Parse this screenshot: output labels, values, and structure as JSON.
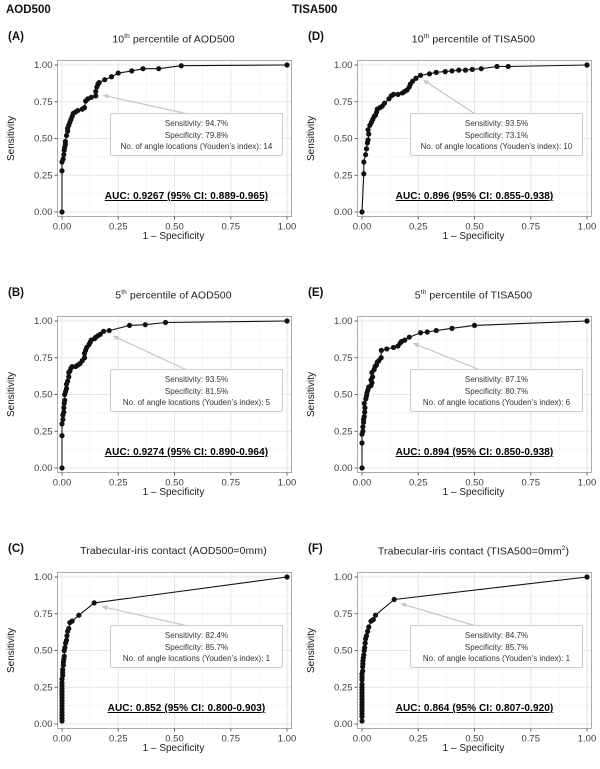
{
  "figure": {
    "column_headers": [
      "AOD500",
      "TISA500"
    ],
    "axes": {
      "x_label": "1 – Specificity",
      "y_label": "Sensitivity",
      "tick_values": [
        0,
        0.25,
        0.5,
        0.75,
        1
      ],
      "tick_labels": [
        "0.00",
        "0.25",
        "0.50",
        "0.75",
        "1.00"
      ],
      "x_range": [
        0,
        1
      ],
      "y_range": [
        0,
        1
      ],
      "grid": "on"
    },
    "colors": {
      "curve": "#111111",
      "grid_major": "#e6e6e6",
      "grid_minor": "#f4f4f4",
      "panel_border": "#ababab",
      "tick_mark": "#555555",
      "tick_text": "#3d3d3d",
      "annotation_border": "#cbcbcb",
      "arrow": "#c6c6c6",
      "background": "#ffffff"
    }
  },
  "chart_data": [
    {
      "type": "line",
      "panel": "A",
      "letter": "(A)",
      "title": "10th percentile of AOD500",
      "title_segments": [
        {
          "text": "10"
        },
        {
          "text": "th",
          "sup": true
        },
        {
          "text": " percentile of AOD500"
        }
      ],
      "xlabel": "1 – Specificity",
      "ylabel": "Sensitivity",
      "xlim": [
        0,
        1
      ],
      "ylim": [
        0,
        1
      ],
      "annotation": {
        "lines": [
          "Sensitivity: 94.7%",
          "Specificity: 79.8%",
          "No. of angle locations (Youden’s index): 14"
        ],
        "sensitivity_pct": 94.7,
        "specificity_pct": 79.8,
        "n_angle_locations_youden": 14
      },
      "auc": 0.9267,
      "ci_95": "0.889-0.965",
      "auc_label": "AUC: 0.9267 (95% CI: 0.889-0.965)",
      "arrow": {
        "from": [
          0.55,
          0.67
        ],
        "to": [
          0.18,
          0.795
        ]
      },
      "roc_points": [
        [
          0,
          0
        ],
        [
          0,
          0.28
        ],
        [
          0,
          0.34
        ],
        [
          0.005,
          0.36
        ],
        [
          0.008,
          0.39
        ],
        [
          0.01,
          0.42
        ],
        [
          0.012,
          0.44
        ],
        [
          0.015,
          0.46
        ],
        [
          0.015,
          0.48
        ],
        [
          0.02,
          0.52
        ],
        [
          0.025,
          0.55
        ],
        [
          0.025,
          0.57
        ],
        [
          0.03,
          0.59
        ],
        [
          0.035,
          0.61
        ],
        [
          0.04,
          0.63
        ],
        [
          0.045,
          0.65
        ],
        [
          0.05,
          0.67
        ],
        [
          0.06,
          0.68
        ],
        [
          0.07,
          0.69
        ],
        [
          0.09,
          0.7
        ],
        [
          0.1,
          0.71
        ],
        [
          0.105,
          0.755
        ],
        [
          0.115,
          0.77
        ],
        [
          0.13,
          0.78
        ],
        [
          0.15,
          0.79
        ],
        [
          0.15,
          0.82
        ],
        [
          0.155,
          0.85
        ],
        [
          0.16,
          0.87
        ],
        [
          0.165,
          0.88
        ],
        [
          0.19,
          0.9
        ],
        [
          0.22,
          0.92
        ],
        [
          0.25,
          0.945
        ],
        [
          0.31,
          0.96
        ],
        [
          0.36,
          0.975
        ],
        [
          0.43,
          0.975
        ],
        [
          0.53,
          0.995
        ],
        [
          1,
          1
        ]
      ]
    },
    {
      "type": "line",
      "panel": "B",
      "letter": "(B)",
      "title": "5th percentile of AOD500",
      "title_segments": [
        {
          "text": "5"
        },
        {
          "text": "th",
          "sup": true
        },
        {
          "text": " percentile of AOD500"
        }
      ],
      "xlabel": "1 – Specificity",
      "ylabel": "Sensitivity",
      "xlim": [
        0,
        1
      ],
      "ylim": [
        0,
        1
      ],
      "annotation": {
        "lines": [
          "Sensitivity: 93.5%",
          "Specificity: 81.5%",
          "No. of angle locations (Youden’s index): 5"
        ],
        "sensitivity_pct": 93.5,
        "specificity_pct": 81.5,
        "n_angle_locations_youden": 5
      },
      "auc": 0.9274,
      "ci_95": "0.890-0.964",
      "auc_label": "AUC: 0.9274 (95% CI: 0.890-0.964)",
      "arrow": {
        "from": [
          0.55,
          0.67
        ],
        "to": [
          0.225,
          0.9
        ]
      },
      "roc_points": [
        [
          0,
          0
        ],
        [
          0,
          0.22
        ],
        [
          0,
          0.3
        ],
        [
          0.004,
          0.33
        ],
        [
          0.004,
          0.36
        ],
        [
          0.008,
          0.38
        ],
        [
          0.008,
          0.41
        ],
        [
          0.01,
          0.44
        ],
        [
          0.012,
          0.46
        ],
        [
          0.012,
          0.5
        ],
        [
          0.016,
          0.52
        ],
        [
          0.02,
          0.54
        ],
        [
          0.02,
          0.57
        ],
        [
          0.025,
          0.59
        ],
        [
          0.03,
          0.62
        ],
        [
          0.03,
          0.65
        ],
        [
          0.035,
          0.66
        ],
        [
          0.04,
          0.68
        ],
        [
          0.045,
          0.69
        ],
        [
          0.06,
          0.69
        ],
        [
          0.07,
          0.7
        ],
        [
          0.08,
          0.71
        ],
        [
          0.09,
          0.73
        ],
        [
          0.1,
          0.75
        ],
        [
          0.1,
          0.78
        ],
        [
          0.105,
          0.8
        ],
        [
          0.11,
          0.82
        ],
        [
          0.12,
          0.84
        ],
        [
          0.125,
          0.855
        ],
        [
          0.13,
          0.87
        ],
        [
          0.145,
          0.88
        ],
        [
          0.15,
          0.89
        ],
        [
          0.16,
          0.9
        ],
        [
          0.17,
          0.91
        ],
        [
          0.185,
          0.93
        ],
        [
          0.21,
          0.935
        ],
        [
          0.3,
          0.97
        ],
        [
          0.37,
          0.975
        ],
        [
          0.46,
          0.99
        ],
        [
          1,
          1
        ]
      ]
    },
    {
      "type": "line",
      "panel": "C",
      "letter": "(C)",
      "title": "Trabecular-iris contact (AOD500=0mm)",
      "title_segments": [
        {
          "text": "Trabecular-iris contact (AOD500=0mm)"
        }
      ],
      "xlabel": "1 – Specificity",
      "ylabel": "Sensitivity",
      "xlim": [
        0,
        1
      ],
      "ylim": [
        0,
        1
      ],
      "annotation": {
        "lines": [
          "Sensitivity: 82.4%",
          "Specificity: 85.7%",
          "No. of angle locations (Youden’s index): 1"
        ],
        "sensitivity_pct": 82.4,
        "specificity_pct": 85.7,
        "n_angle_locations_youden": 1
      },
      "auc": 0.852,
      "ci_95": "0.800-0.903",
      "auc_label": "AUC: 0.852 (95% CI: 0.800-0.903)",
      "arrow": {
        "from": [
          0.55,
          0.67
        ],
        "to": [
          0.175,
          0.8
        ]
      },
      "roc_points": [
        [
          0,
          0.02
        ],
        [
          0,
          0.04
        ],
        [
          0,
          0.06
        ],
        [
          0,
          0.08
        ],
        [
          0,
          0.1
        ],
        [
          0,
          0.12
        ],
        [
          0,
          0.14
        ],
        [
          0,
          0.16
        ],
        [
          0,
          0.18
        ],
        [
          0,
          0.2
        ],
        [
          0,
          0.22
        ],
        [
          0,
          0.24
        ],
        [
          0,
          0.26
        ],
        [
          0,
          0.28
        ],
        [
          0,
          0.305
        ],
        [
          0.003,
          0.33
        ],
        [
          0.003,
          0.35
        ],
        [
          0.003,
          0.37
        ],
        [
          0.006,
          0.4
        ],
        [
          0.006,
          0.42
        ],
        [
          0.008,
          0.44
        ],
        [
          0.01,
          0.46
        ],
        [
          0.01,
          0.5
        ],
        [
          0.013,
          0.52
        ],
        [
          0.016,
          0.55
        ],
        [
          0.02,
          0.57
        ],
        [
          0.022,
          0.6
        ],
        [
          0.025,
          0.63
        ],
        [
          0.03,
          0.65
        ],
        [
          0.035,
          0.69
        ],
        [
          0.045,
          0.7
        ],
        [
          0.075,
          0.74
        ],
        [
          0.143,
          0.824
        ],
        [
          1,
          1
        ]
      ]
    },
    {
      "type": "line",
      "panel": "D",
      "letter": "(D)",
      "title": "10th percentile of TISA500",
      "title_segments": [
        {
          "text": "10"
        },
        {
          "text": "th",
          "sup": true
        },
        {
          "text": " percentile of TISA500"
        }
      ],
      "xlabel": "1 – Specificity",
      "ylabel": "Sensitivity",
      "xlim": [
        0,
        1
      ],
      "ylim": [
        0,
        1
      ],
      "annotation": {
        "lines": [
          "Sensitivity: 93.5%",
          "Specificity: 73.1%",
          "No. of angle locations (Youden’s index): 10"
        ],
        "sensitivity_pct": 93.5,
        "specificity_pct": 73.1,
        "n_angle_locations_youden": 10
      },
      "auc": 0.896,
      "ci_95": "0.855-0.938",
      "auc_label": "AUC: 0.896 (95% CI: 0.855-0.938)",
      "arrow": {
        "from": [
          0.5,
          0.67
        ],
        "to": [
          0.27,
          0.9
        ]
      },
      "roc_points": [
        [
          0,
          0
        ],
        [
          0.008,
          0.26
        ],
        [
          0.008,
          0.34
        ],
        [
          0.016,
          0.39
        ],
        [
          0.02,
          0.43
        ],
        [
          0.024,
          0.47
        ],
        [
          0.027,
          0.49
        ],
        [
          0.03,
          0.53
        ],
        [
          0.027,
          0.56
        ],
        [
          0.035,
          0.59
        ],
        [
          0.042,
          0.61
        ],
        [
          0.048,
          0.63
        ],
        [
          0.054,
          0.65
        ],
        [
          0.06,
          0.66
        ],
        [
          0.065,
          0.68
        ],
        [
          0.068,
          0.7
        ],
        [
          0.08,
          0.71
        ],
        [
          0.09,
          0.72
        ],
        [
          0.1,
          0.74
        ],
        [
          0.12,
          0.77
        ],
        [
          0.13,
          0.79
        ],
        [
          0.14,
          0.8
        ],
        [
          0.16,
          0.8
        ],
        [
          0.18,
          0.81
        ],
        [
          0.19,
          0.82
        ],
        [
          0.2,
          0.83
        ],
        [
          0.21,
          0.85
        ],
        [
          0.215,
          0.87
        ],
        [
          0.225,
          0.89
        ],
        [
          0.24,
          0.91
        ],
        [
          0.26,
          0.93
        ],
        [
          0.3,
          0.94
        ],
        [
          0.33,
          0.95
        ],
        [
          0.37,
          0.955
        ],
        [
          0.4,
          0.96
        ],
        [
          0.43,
          0.965
        ],
        [
          0.46,
          0.965
        ],
        [
          0.49,
          0.97
        ],
        [
          0.53,
          0.975
        ],
        [
          0.6,
          0.99
        ],
        [
          0.65,
          0.99
        ],
        [
          1,
          1
        ]
      ]
    },
    {
      "type": "line",
      "panel": "E",
      "letter": "(E)",
      "title": "5th percentile of TISA500",
      "title_segments": [
        {
          "text": "5"
        },
        {
          "text": "th",
          "sup": true
        },
        {
          "text": " percentile of TISA500"
        }
      ],
      "xlabel": "1 – Specificity",
      "ylabel": "Sensitivity",
      "xlim": [
        0,
        1
      ],
      "ylim": [
        0,
        1
      ],
      "annotation": {
        "lines": [
          "Sensitivity: 87.1%",
          "Specificity: 80.7%",
          "No. of angle locations (Youden’s index): 6"
        ],
        "sensitivity_pct": 87.1,
        "specificity_pct": 80.7,
        "n_angle_locations_youden": 6
      },
      "auc": 0.894,
      "ci_95": "0.850-0.938",
      "auc_label": "AUC: 0.894 (95% CI: 0.850-0.938)",
      "arrow": {
        "from": [
          0.52,
          0.67
        ],
        "to": [
          0.225,
          0.85
        ]
      },
      "roc_points": [
        [
          0,
          0
        ],
        [
          0,
          0.17
        ],
        [
          0,
          0.23
        ],
        [
          0.004,
          0.25
        ],
        [
          0.004,
          0.28
        ],
        [
          0.007,
          0.31
        ],
        [
          0.007,
          0.33
        ],
        [
          0.01,
          0.35
        ],
        [
          0.012,
          0.38
        ],
        [
          0.013,
          0.41
        ],
        [
          0.01,
          0.44
        ],
        [
          0.017,
          0.47
        ],
        [
          0.02,
          0.49
        ],
        [
          0.022,
          0.51
        ],
        [
          0.026,
          0.53
        ],
        [
          0.03,
          0.55
        ],
        [
          0.04,
          0.56
        ],
        [
          0.044,
          0.58
        ],
        [
          0.04,
          0.6
        ],
        [
          0.047,
          0.62
        ],
        [
          0.044,
          0.65
        ],
        [
          0.054,
          0.67
        ],
        [
          0.058,
          0.69
        ],
        [
          0.064,
          0.7
        ],
        [
          0.068,
          0.72
        ],
        [
          0.075,
          0.73
        ],
        [
          0.085,
          0.75
        ],
        [
          0.086,
          0.8
        ],
        [
          0.11,
          0.81
        ],
        [
          0.14,
          0.82
        ],
        [
          0.16,
          0.83
        ],
        [
          0.17,
          0.85
        ],
        [
          0.175,
          0.86
        ],
        [
          0.19,
          0.87
        ],
        [
          0.21,
          0.89
        ],
        [
          0.26,
          0.92
        ],
        [
          0.29,
          0.925
        ],
        [
          0.33,
          0.935
        ],
        [
          0.4,
          0.95
        ],
        [
          0.5,
          0.97
        ],
        [
          1,
          1
        ]
      ]
    },
    {
      "type": "line",
      "panel": "F",
      "letter": "(F)",
      "title": "Trabecular-iris contact (TISA500=0mm2)",
      "title_segments": [
        {
          "text": "Trabecular-iris contact (TISA500=0mm"
        },
        {
          "text": "2",
          "sup": true
        },
        {
          "text": ")"
        }
      ],
      "xlabel": "1 – Specificity",
      "ylabel": "Sensitivity",
      "xlim": [
        0,
        1
      ],
      "ylim": [
        0,
        1
      ],
      "annotation": {
        "lines": [
          "Sensitivity: 84.7%",
          "Specificity: 85.7%",
          "No. of angle locations (Youden’s index): 1"
        ],
        "sensitivity_pct": 84.7,
        "specificity_pct": 85.7,
        "n_angle_locations_youden": 1
      },
      "auc": 0.864,
      "ci_95": "0.807-0.920",
      "auc_label": "AUC: 0.864 (95% CI: 0.807-0.920)",
      "arrow": {
        "from": [
          0.5,
          0.67
        ],
        "to": [
          0.17,
          0.82
        ]
      },
      "roc_points": [
        [
          0,
          0.02
        ],
        [
          0,
          0.05
        ],
        [
          0,
          0.07
        ],
        [
          0,
          0.09
        ],
        [
          0,
          0.11
        ],
        [
          0,
          0.13
        ],
        [
          0,
          0.15
        ],
        [
          0,
          0.17
        ],
        [
          0,
          0.19
        ],
        [
          0,
          0.21
        ],
        [
          0,
          0.23
        ],
        [
          0,
          0.25
        ],
        [
          0,
          0.27
        ],
        [
          0,
          0.3
        ],
        [
          0,
          0.32
        ],
        [
          0,
          0.34
        ],
        [
          0.003,
          0.36
        ],
        [
          0.003,
          0.39
        ],
        [
          0.004,
          0.41
        ],
        [
          0.004,
          0.43
        ],
        [
          0.006,
          0.45
        ],
        [
          0.008,
          0.47
        ],
        [
          0.01,
          0.5
        ],
        [
          0.012,
          0.52
        ],
        [
          0.014,
          0.55
        ],
        [
          0.016,
          0.58
        ],
        [
          0.02,
          0.6
        ],
        [
          0.025,
          0.63
        ],
        [
          0.03,
          0.66
        ],
        [
          0.04,
          0.7
        ],
        [
          0.05,
          0.71
        ],
        [
          0.06,
          0.74
        ],
        [
          0.143,
          0.847
        ],
        [
          1,
          1
        ]
      ]
    }
  ]
}
